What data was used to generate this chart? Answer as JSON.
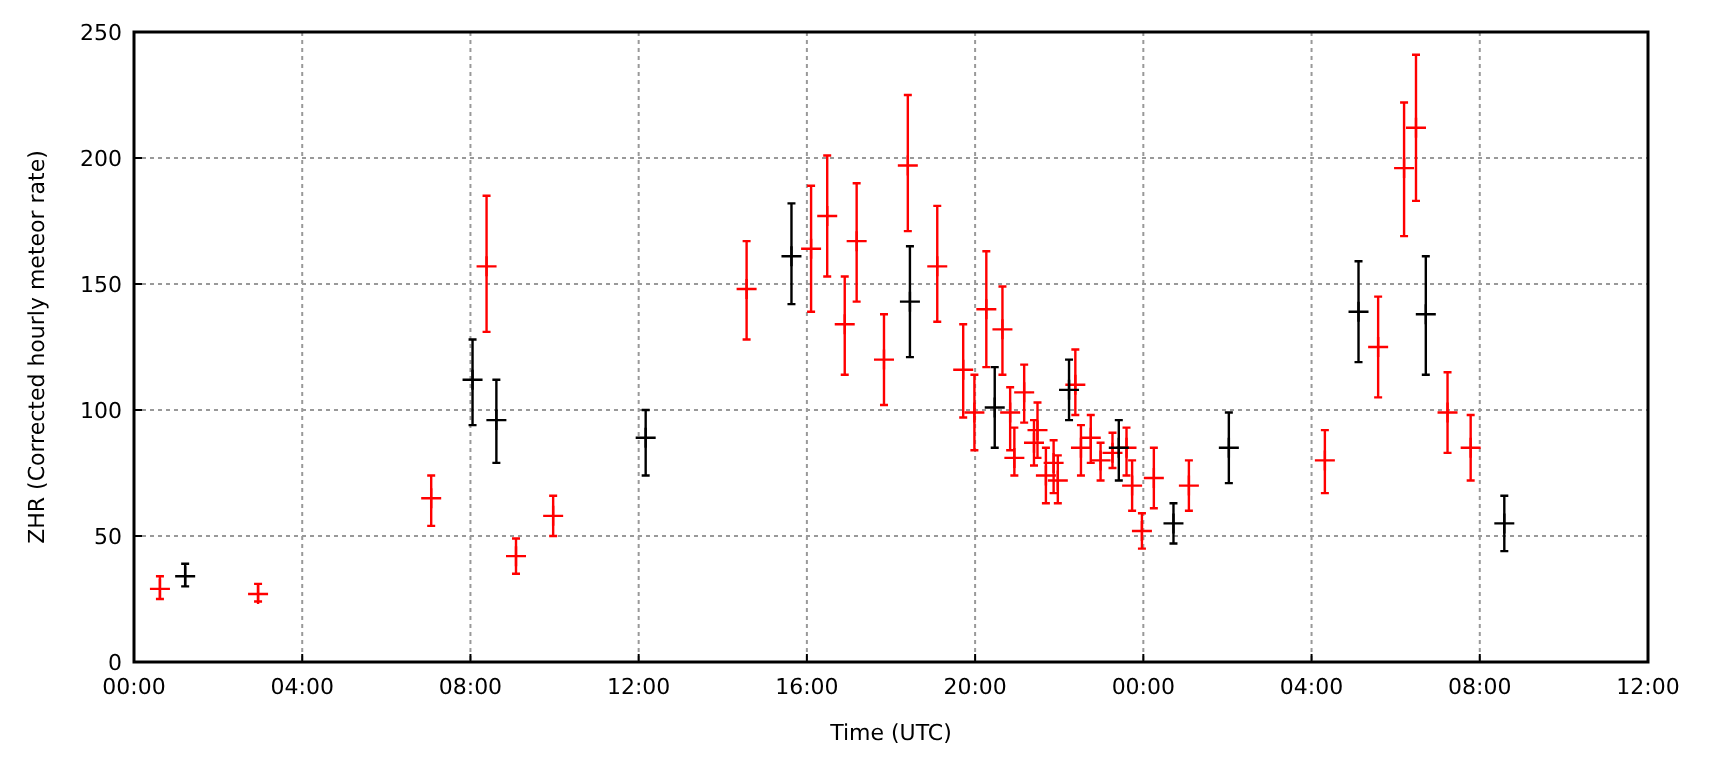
{
  "chart_data": {
    "type": "scatter",
    "xlabel": "Time (UTC)",
    "ylabel": "ZHR (Corrected hourly meteor rate)",
    "xlim": [
      "2000-01-01T00:00",
      "2000-01-02T12:00"
    ],
    "ylim": [
      0,
      250
    ],
    "xticks": [
      {
        "value": "2000-01-01T00:00",
        "label": "00:00"
      },
      {
        "value": "2000-01-01T04:00",
        "label": "04:00"
      },
      {
        "value": "2000-01-01T08:00",
        "label": "08:00"
      },
      {
        "value": "2000-01-01T12:00",
        "label": "12:00"
      },
      {
        "value": "2000-01-01T16:00",
        "label": "16:00"
      },
      {
        "value": "2000-01-01T20:00",
        "label": "20:00"
      },
      {
        "value": "2000-01-02T00:00",
        "label": "00:00"
      },
      {
        "value": "2000-01-02T04:00",
        "label": "04:00"
      },
      {
        "value": "2000-01-02T08:00",
        "label": "08:00"
      },
      {
        "value": "2000-01-02T12:00",
        "label": "12:00"
      }
    ],
    "yticks": [
      0,
      50,
      100,
      150,
      200,
      250
    ],
    "grid": true,
    "marker": "cross",
    "series": [
      {
        "color": "#ff0000",
        "x": [
          "2000-01-01T00:37",
          "2000-01-01T02:57",
          "2000-01-01T07:04",
          "2000-01-01T08:23",
          "2000-01-01T09:05",
          "2000-01-01T09:58",
          "2000-01-01T14:34",
          "2000-01-01T16:06",
          "2000-01-01T16:29",
          "2000-01-01T16:54",
          "2000-01-01T17:11",
          "2000-01-01T17:50",
          "2000-01-01T18:24",
          "2000-01-01T19:06",
          "2000-01-01T19:43",
          "2000-01-01T19:59",
          "2000-01-01T20:16",
          "2000-01-01T20:39",
          "2000-01-01T20:50",
          "2000-01-01T20:56",
          "2000-01-01T21:10",
          "2000-01-01T21:24",
          "2000-01-01T21:29",
          "2000-01-01T21:41",
          "2000-01-01T21:52",
          "2000-01-01T21:58",
          "2000-01-01T22:23",
          "2000-01-01T22:31",
          "2000-01-01T22:45",
          "2000-01-01T22:59",
          "2000-01-01T23:16",
          "2000-01-01T23:36",
          "2000-01-01T23:44",
          "2000-01-01T23:58",
          "2000-01-02T00:15",
          "2000-01-02T01:05",
          "2000-01-02T04:19",
          "2000-01-02T05:35",
          "2000-01-02T06:12",
          "2000-01-02T06:29",
          "2000-01-02T07:14",
          "2000-01-02T07:47"
        ],
        "values": [
          29,
          27,
          65,
          157,
          42,
          58,
          148,
          164,
          177,
          134,
          167,
          120,
          197,
          157,
          116,
          99,
          140,
          132,
          99,
          81,
          107,
          87,
          92,
          74,
          79,
          72,
          110,
          85,
          89,
          80,
          83,
          85,
          70,
          52,
          73,
          70,
          80,
          125,
          196,
          212,
          99,
          85
        ],
        "errors": [
          [
            25,
            34
          ],
          [
            24,
            31
          ],
          [
            54,
            74
          ],
          [
            131,
            185
          ],
          [
            35,
            49
          ],
          [
            50,
            66
          ],
          [
            128,
            167
          ],
          [
            139,
            189
          ],
          [
            153,
            201
          ],
          [
            114,
            153
          ],
          [
            143,
            190
          ],
          [
            102,
            138
          ],
          [
            171,
            225
          ],
          [
            135,
            181
          ],
          [
            97,
            134
          ],
          [
            84,
            114
          ],
          [
            117,
            163
          ],
          [
            114,
            149
          ],
          [
            84,
            109
          ],
          [
            74,
            93
          ],
          [
            95,
            118
          ],
          [
            78,
            96
          ],
          [
            81,
            103
          ],
          [
            63,
            85
          ],
          [
            67,
            88
          ],
          [
            63,
            82
          ],
          [
            98,
            124
          ],
          [
            74,
            94
          ],
          [
            79,
            98
          ],
          [
            72,
            87
          ],
          [
            77,
            91
          ],
          [
            74,
            93
          ],
          [
            60,
            80
          ],
          [
            45,
            59
          ],
          [
            61,
            85
          ],
          [
            60,
            80
          ],
          [
            67,
            92
          ],
          [
            105,
            145
          ],
          [
            169,
            222
          ],
          [
            183,
            241
          ],
          [
            83,
            115
          ],
          [
            72,
            98
          ]
        ]
      },
      {
        "color": "#000000",
        "x": [
          "2000-01-01T01:13",
          "2000-01-01T08:03",
          "2000-01-01T08:37",
          "2000-01-01T12:10",
          "2000-01-01T15:38",
          "2000-01-01T18:27",
          "2000-01-01T20:28",
          "2000-01-01T22:14",
          "2000-01-01T23:25",
          "2000-01-02T00:43",
          "2000-01-02T02:02",
          "2000-01-02T05:07",
          "2000-01-02T06:43",
          "2000-01-02T08:35"
        ],
        "values": [
          34,
          112,
          96,
          89,
          161,
          143,
          101,
          108,
          85,
          55,
          85,
          139,
          138,
          55
        ],
        "errors": [
          [
            30,
            39
          ],
          [
            94,
            128
          ],
          [
            79,
            112
          ],
          [
            74,
            100
          ],
          [
            142,
            182
          ],
          [
            121,
            165
          ],
          [
            85,
            117
          ],
          [
            96,
            120
          ],
          [
            72,
            96
          ],
          [
            47,
            63
          ],
          [
            71,
            99
          ],
          [
            119,
            159
          ],
          [
            114,
            161
          ],
          [
            44,
            66
          ]
        ]
      }
    ]
  }
}
